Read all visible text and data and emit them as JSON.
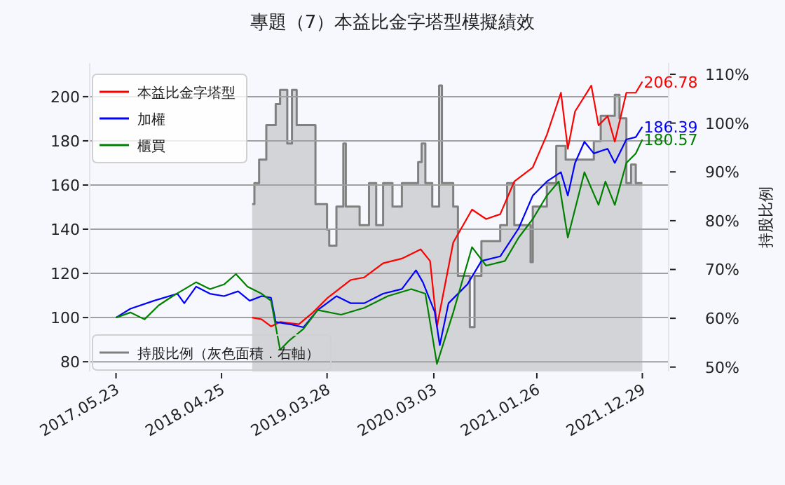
{
  "chart_data": {
    "type": "line",
    "title": "專題（7）本益比金字塔型模擬績效",
    "y2label": "持股比例",
    "xlim": [
      "2017-02-28",
      "2022-03-23"
    ],
    "xticks": [
      {
        "value": "2017-05-23",
        "label": "2017.05.23"
      },
      {
        "value": "2018-04-25",
        "label": "2018.04.25"
      },
      {
        "value": "2019-03-28",
        "label": "2019.03.28"
      },
      {
        "value": "2020-03-03",
        "label": "2020.03.03"
      },
      {
        "value": "2021-01-26",
        "label": "2021.01.26"
      },
      {
        "value": "2021-12-29",
        "label": "2021.12.29"
      }
    ],
    "ylim": [
      75.6,
      215.2
    ],
    "yticks": [
      80,
      100,
      120,
      140,
      160,
      180,
      200
    ],
    "y2lim": [
      49.1,
      112.3
    ],
    "y2ticks": [
      {
        "value": 50,
        "label": "50%"
      },
      {
        "value": 60,
        "label": "60%"
      },
      {
        "value": 70,
        "label": "70%"
      },
      {
        "value": 80,
        "label": "80%"
      },
      {
        "value": 90,
        "label": "90%"
      },
      {
        "value": 100,
        "label": "100%"
      },
      {
        "value": 110,
        "label": "110%"
      }
    ],
    "grid": "y",
    "legend": "left",
    "series": [
      {
        "name": "本益比金字塔型",
        "color": "#ff0000",
        "x": [
          "2018-08-01",
          "2018-08-31",
          "2018-09-30",
          "2018-10-29",
          "2018-12-28",
          "2019-02-11",
          "2019-03-28",
          "2019-06-11",
          "2019-07-25",
          "2019-09-23",
          "2019-11-22",
          "2020-01-21",
          "2020-02-20",
          "2020-03-13",
          "2020-05-04",
          "2020-07-03",
          "2020-08-17",
          "2020-10-01",
          "2020-11-15",
          "2021-01-13",
          "2021-02-27",
          "2021-04-13",
          "2021-05-05",
          "2021-05-28",
          "2021-07-19",
          "2021-08-11",
          "2021-09-09",
          "2021-10-02",
          "2021-11-08",
          "2021-12-08",
          "2021-12-29"
        ],
        "values": [
          100,
          99.2,
          96,
          98,
          97,
          102.3,
          108.7,
          117,
          118.2,
          124.6,
          126.7,
          130.9,
          125.6,
          96,
          134,
          148.9,
          144.6,
          146.8,
          161.6,
          168,
          182.7,
          201.8,
          176.4,
          193.3,
          205,
          187,
          191.2,
          179.6,
          201.8,
          201.8,
          206.78
        ]
      },
      {
        "name": "加權",
        "color": "#0000ff",
        "x": [
          "2017-05-23",
          "2017-07-08",
          "2017-09-21",
          "2017-12-05",
          "2017-12-27",
          "2018-02-03",
          "2018-03-19",
          "2018-05-03",
          "2018-06-17",
          "2018-07-24",
          "2018-08-31",
          "2018-09-30",
          "2018-10-15",
          "2018-11-28",
          "2019-01-12",
          "2019-02-26",
          "2019-04-27",
          "2019-06-11",
          "2019-07-25",
          "2019-09-23",
          "2019-11-22",
          "2020-01-06",
          "2020-01-28",
          "2020-03-06",
          "2020-03-22",
          "2020-04-19",
          "2020-06-18",
          "2020-08-02",
          "2020-10-01",
          "2020-11-29",
          "2021-01-13",
          "2021-02-27",
          "2021-04-13",
          "2021-05-05",
          "2021-05-28",
          "2021-06-27",
          "2021-07-27",
          "2021-09-09",
          "2021-10-02",
          "2021-11-08",
          "2021-12-08",
          "2021-12-29"
        ],
        "values": [
          100,
          104,
          107.6,
          110.8,
          106.5,
          114,
          110.8,
          109.7,
          111.9,
          107.6,
          109.7,
          109,
          98,
          97,
          95.6,
          103.4,
          109.7,
          106.5,
          106.5,
          110.8,
          112.9,
          121.4,
          116,
          102.5,
          87.5,
          106.5,
          115,
          125.6,
          127.7,
          140.4,
          155.2,
          161.6,
          165.8,
          155.2,
          170,
          179.6,
          174.3,
          176.4,
          170,
          180.6,
          181.7,
          186.39
        ]
      },
      {
        "name": "櫃買",
        "color": "#008000",
        "x": [
          "2017-05-23",
          "2017-07-08",
          "2017-08-22",
          "2017-10-06",
          "2017-11-20",
          "2018-02-03",
          "2018-03-19",
          "2018-05-03",
          "2018-06-10",
          "2018-07-17",
          "2018-08-31",
          "2018-09-30",
          "2018-10-29",
          "2018-11-28",
          "2019-01-12",
          "2019-02-26",
          "2019-05-12",
          "2019-07-25",
          "2019-10-08",
          "2019-12-22",
          "2020-02-05",
          "2020-03-13",
          "2020-05-04",
          "2020-07-03",
          "2020-08-17",
          "2020-10-16",
          "2020-11-29",
          "2021-01-13",
          "2021-02-27",
          "2021-04-06",
          "2021-05-05",
          "2021-06-27",
          "2021-08-11",
          "2021-09-02",
          "2021-10-02",
          "2021-11-08",
          "2021-12-08",
          "2021-12-29"
        ],
        "values": [
          100,
          102.3,
          99.2,
          105.5,
          109.7,
          116,
          112.9,
          115,
          119.7,
          114,
          110.8,
          107.6,
          85.4,
          89.7,
          94.9,
          103.4,
          101.3,
          104.4,
          109.7,
          112.9,
          110.8,
          79,
          102.3,
          131.9,
          123.5,
          125.6,
          136.2,
          144.6,
          155.2,
          161.6,
          136.2,
          165.8,
          151,
          161.6,
          151,
          170,
          174.3,
          180.57
        ]
      },
      {
        "name": "持股比例（灰色面積．右軸）",
        "type": "area",
        "axis": "y2",
        "color": "#808080",
        "x": [
          "2018-08-01",
          "2018-08-08",
          "2018-08-08",
          "2018-08-23",
          "2018-08-23",
          "2018-09-15",
          "2018-09-15",
          "2018-10-15",
          "2018-10-15",
          "2018-10-29",
          "2018-10-29",
          "2018-11-21",
          "2018-11-21",
          "2018-12-06",
          "2018-12-06",
          "2018-12-21",
          "2018-12-21",
          "2019-02-19",
          "2019-02-19",
          "2019-03-28",
          "2019-03-28",
          "2019-04-04",
          "2019-04-04",
          "2019-04-27",
          "2019-04-27",
          "2019-05-19",
          "2019-05-19",
          "2019-05-27",
          "2019-05-27",
          "2019-07-10",
          "2019-07-10",
          "2019-08-09",
          "2019-08-09",
          "2019-09-01",
          "2019-09-01",
          "2019-09-23",
          "2019-09-23",
          "2019-10-23",
          "2019-10-23",
          "2019-11-22",
          "2019-11-22",
          "2020-01-13",
          "2020-01-13",
          "2020-01-24",
          "2020-01-24",
          "2020-02-05",
          "2020-02-05",
          "2020-02-27",
          "2020-02-27",
          "2020-03-20",
          "2020-03-20",
          "2020-03-29",
          "2020-03-29",
          "2020-05-04",
          "2020-05-04",
          "2020-05-19",
          "2020-05-19",
          "2020-06-26",
          "2020-06-26",
          "2020-07-11",
          "2020-07-11",
          "2020-08-02",
          "2020-08-02",
          "2020-10-01",
          "2020-10-01",
          "2020-10-23",
          "2020-10-23",
          "2020-11-15",
          "2020-11-15",
          "2021-01-06",
          "2021-01-06",
          "2021-01-13",
          "2021-01-13",
          "2021-02-27",
          "2021-02-27",
          "2021-03-29",
          "2021-03-29",
          "2021-04-28",
          "2021-04-28",
          "2021-07-27",
          "2021-07-27",
          "2021-08-18",
          "2021-08-18",
          "2021-10-02",
          "2021-10-02",
          "2021-10-17",
          "2021-10-17",
          "2021-11-08",
          "2021-11-08",
          "2021-11-23",
          "2021-11-23",
          "2021-12-08",
          "2021-12-08",
          "2021-12-29"
        ],
        "values": [
          83.4,
          83.4,
          87.7,
          87.7,
          92.5,
          92.5,
          99.6,
          99.6,
          103.9,
          103.9,
          106.8,
          106.8,
          95.8,
          95.8,
          106.8,
          106.8,
          99.6,
          99.6,
          83.4,
          83.4,
          78.2,
          78.2,
          74.9,
          74.9,
          82.9,
          82.9,
          95.8,
          95.8,
          82.9,
          82.9,
          79.1,
          79.1,
          87.7,
          87.7,
          79.1,
          79.1,
          87.7,
          87.7,
          82.9,
          82.9,
          87.7,
          87.7,
          92,
          92,
          95.8,
          95.8,
          87.7,
          87.7,
          82.9,
          82.9,
          107.7,
          107.7,
          87.7,
          87.7,
          82.9,
          82.9,
          68.7,
          68.7,
          58.2,
          58.2,
          68.7,
          68.7,
          75.8,
          75.8,
          79.1,
          79.1,
          87.7,
          87.7,
          79.1,
          79.1,
          71.5,
          71.5,
          82.9,
          82.9,
          87.7,
          87.7,
          95.3,
          95.3,
          92.5,
          92.5,
          96.3,
          96.3,
          101.5,
          101.5,
          105.8,
          105.8,
          101,
          101,
          87.7,
          87.7,
          91.5,
          91.5,
          87.7,
          87.7
        ]
      }
    ],
    "annotations": [
      {
        "text": "206.78",
        "x": "2021-12-29",
        "y": 206.78
      },
      {
        "text": "186.39",
        "x": "2021-12-29",
        "y": 186.39
      },
      {
        "text": "180.57",
        "x": "2021-12-29",
        "y": 180.57
      }
    ]
  }
}
